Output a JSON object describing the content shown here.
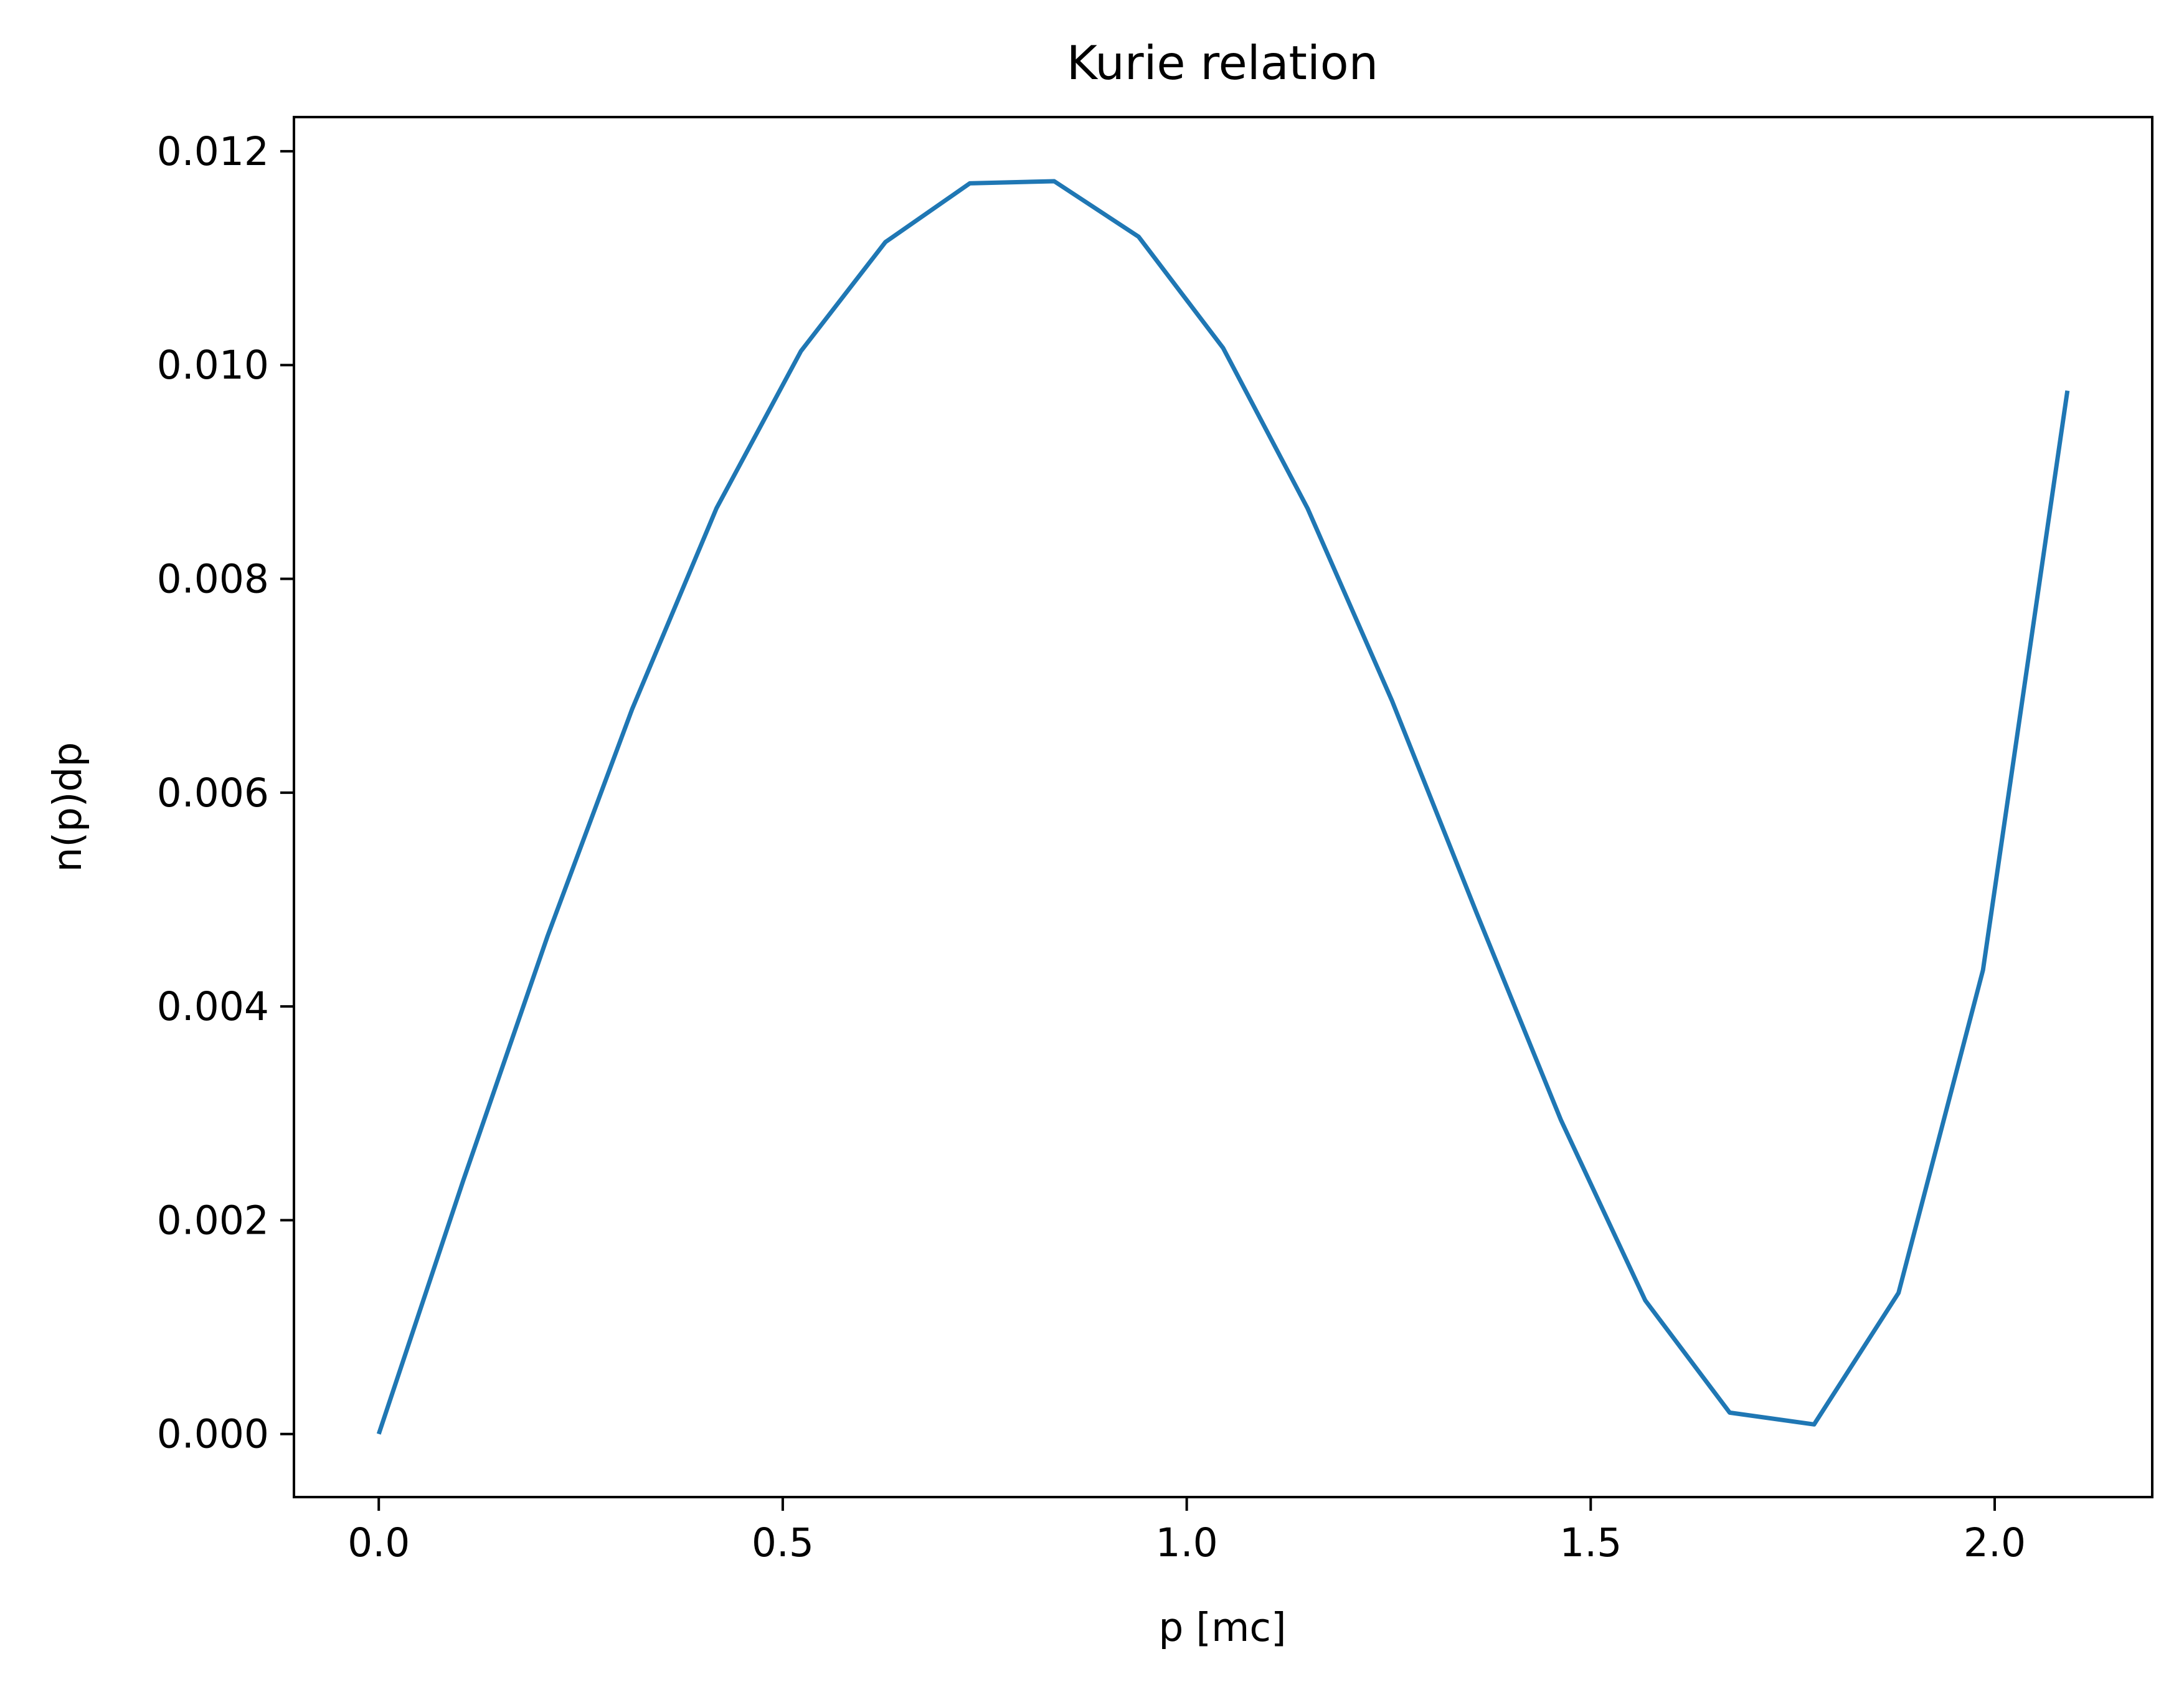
{
  "chart_data": {
    "type": "line",
    "title": "Kurie relation",
    "xlabel": "p [mc]",
    "ylabel": "n(p)dp",
    "xlim": [
      -0.105,
      2.195
    ],
    "ylim": [
      -0.00059,
      0.01232
    ],
    "xticks": [
      0.0,
      0.5,
      1.0,
      1.5,
      2.0
    ],
    "xtick_labels": [
      "0.0",
      "0.5",
      "1.0",
      "1.5",
      "2.0"
    ],
    "yticks": [
      0.0,
      0.002,
      0.004,
      0.006,
      0.008,
      0.01,
      0.012
    ],
    "ytick_labels": [
      "0.000",
      "0.002",
      "0.004",
      "0.006",
      "0.008",
      "0.010",
      "0.012"
    ],
    "grid": false,
    "series": [
      {
        "color": "#1f77b4",
        "x": [
          0.0,
          0.1045,
          0.209,
          0.3135,
          0.418,
          0.5225,
          0.627,
          0.7315,
          0.836,
          0.9405,
          1.045,
          1.1495,
          1.254,
          1.3585,
          1.463,
          1.5675,
          1.672,
          1.7765,
          1.881,
          1.9855,
          2.09
        ],
        "y": [
          0.0,
          0.00237,
          0.00466,
          0.00678,
          0.00866,
          0.01013,
          0.01115,
          0.0117,
          0.01172,
          0.0112,
          0.01016,
          0.00866,
          0.00686,
          0.00488,
          0.00294,
          0.00125,
          0.0002,
          9e-05,
          0.00132,
          0.00434,
          0.00976
        ]
      }
    ]
  }
}
